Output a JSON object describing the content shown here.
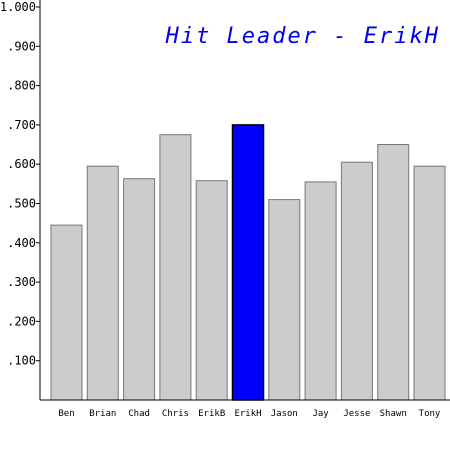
{
  "chart_data": {
    "type": "bar",
    "title": "Hit Leader - ErikH",
    "xlabel": "",
    "ylabel": "",
    "categories": [
      "Ben",
      "Brian",
      "Chad",
      "Chris",
      "ErikB",
      "ErikH",
      "Jason",
      "Jay",
      "Jesse",
      "Shawn",
      "Tony"
    ],
    "values": [
      0.445,
      0.595,
      0.563,
      0.675,
      0.558,
      0.7,
      0.51,
      0.555,
      0.605,
      0.65,
      0.595
    ],
    "highlight": "ErikH",
    "ylim": [
      0,
      1.0
    ],
    "yticks": [
      ".100",
      ".200",
      ".300",
      ".400",
      ".500",
      ".600",
      ".700",
      ".800",
      ".900",
      "1.000"
    ],
    "ytick_values": [
      0.1,
      0.2,
      0.3,
      0.4,
      0.5,
      0.6,
      0.7,
      0.8,
      0.9,
      1.0
    ],
    "grid": false,
    "legend": "none",
    "colors": {
      "bar": "#cccccc",
      "bar_edge": "#777777",
      "highlight": "#0000ff",
      "highlight_edge": "#000000",
      "title": "#0000ee"
    }
  }
}
